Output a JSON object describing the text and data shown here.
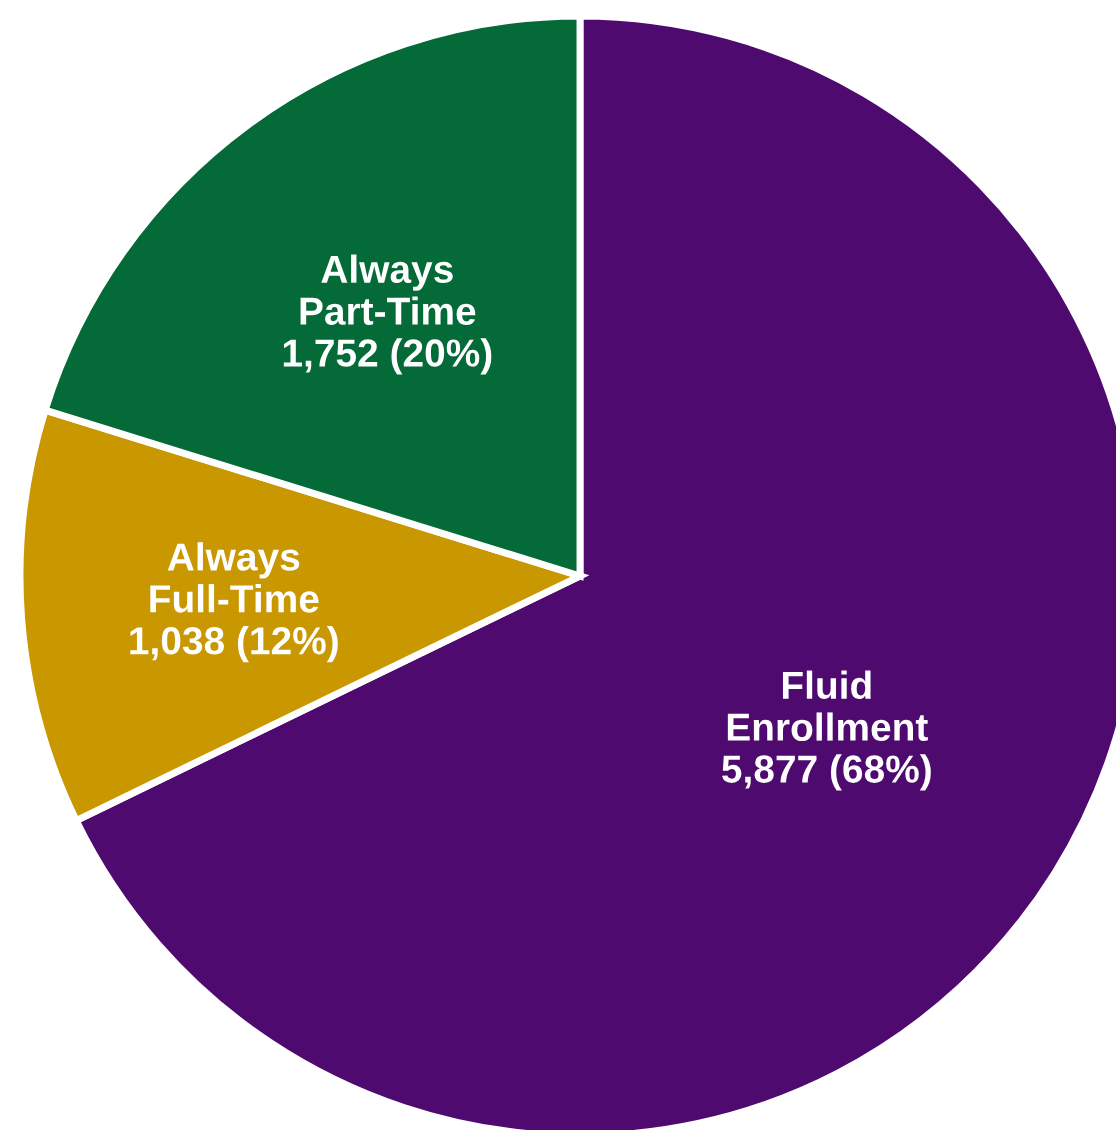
{
  "chart_data": {
    "type": "pie",
    "categories": [
      "Fluid\nEnrollment",
      "Always\nFull-Time",
      "Always\nPart-Time"
    ],
    "values": [
      5877,
      1038,
      1752
    ],
    "value_labels": [
      "5,877 (68%)",
      "1,038 (12%)",
      "1,752 (20%)"
    ],
    "colors": [
      "#4f0a6f",
      "#c99700",
      "#046a38"
    ],
    "legend": false
  }
}
